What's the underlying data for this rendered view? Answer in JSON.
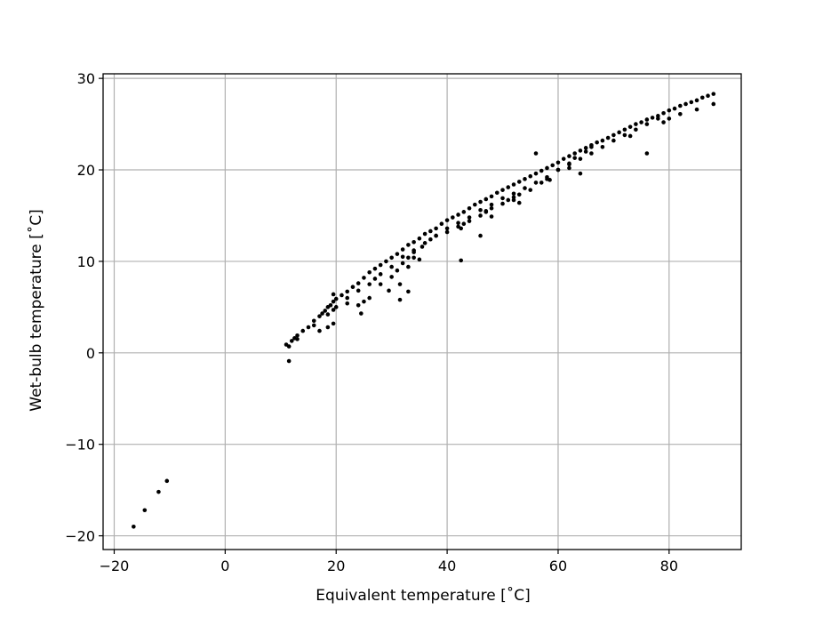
{
  "chart_data": {
    "type": "scatter",
    "title": "",
    "xlabel": "Equivalent temperature [˚C]",
    "ylabel": "Wet-bulb temperature [˚C]",
    "xlim": [
      -22,
      93
    ],
    "ylim": [
      -21.5,
      30.5
    ],
    "xticks": [
      -20,
      0,
      20,
      40,
      60,
      80
    ],
    "yticks": [
      -20,
      -10,
      0,
      10,
      20,
      30
    ],
    "xtick_labels": [
      "−20",
      "0",
      "20",
      "40",
      "60",
      "80"
    ],
    "ytick_labels": [
      "−20",
      "−10",
      "0",
      "10",
      "20",
      "30"
    ],
    "grid": true,
    "marker_color": "#000000",
    "series": [
      {
        "x": [
          -16.5,
          -14.5,
          -12,
          -10.5,
          11,
          11.5,
          12,
          12.5,
          13,
          14,
          15,
          16,
          17,
          17.5,
          18,
          18.5,
          19,
          19.5,
          20,
          21,
          22,
          23,
          24,
          25,
          26,
          27,
          28,
          29,
          30,
          31,
          32,
          33,
          34,
          35,
          36,
          37,
          38,
          39,
          40,
          41,
          42,
          43,
          44,
          45,
          46,
          47,
          48,
          49,
          50,
          51,
          52,
          53,
          54,
          55,
          56,
          57,
          58,
          59,
          60,
          61,
          62,
          63,
          64,
          65,
          66,
          67,
          68,
          69,
          70,
          71,
          72,
          73,
          74,
          75,
          76,
          77,
          78,
          79,
          80,
          81,
          82,
          83,
          84,
          85,
          86,
          87,
          88,
          20,
          22,
          24,
          26,
          28,
          30,
          32,
          34,
          36,
          38,
          40,
          42,
          44,
          46,
          48,
          50,
          52,
          54,
          56,
          58,
          60,
          62,
          64,
          66,
          68,
          70,
          72,
          74,
          76,
          78,
          11.5,
          17,
          18.5,
          19.5,
          24,
          25,
          26,
          28,
          30,
          31,
          32,
          33,
          34,
          35.5,
          37,
          38,
          40,
          42,
          43,
          44,
          46,
          47,
          48,
          50,
          51,
          52,
          53,
          55,
          57,
          58,
          60,
          62,
          63,
          65,
          66,
          73,
          79,
          80,
          82,
          85,
          88,
          13,
          16,
          18.5,
          19.5,
          22,
          27,
          31.5,
          33,
          35,
          42.5,
          47,
          52,
          58.5,
          62,
          64,
          76,
          19.5,
          24.5,
          29.5,
          31.5,
          33,
          34,
          42.5,
          46,
          48,
          53,
          56
        ],
        "y": [
          -19,
          -17.2,
          -15.2,
          -14,
          0.9,
          0.7,
          1.3,
          1.6,
          1.9,
          2.4,
          2.8,
          3.5,
          4,
          4.3,
          4.6,
          5,
          5.2,
          5.6,
          5.9,
          6.3,
          6.7,
          7.2,
          7.6,
          8.2,
          8.8,
          9.2,
          9.6,
          10,
          10.4,
          10.8,
          11.3,
          11.8,
          12.1,
          12.5,
          13,
          13.3,
          13.6,
          14.1,
          14.5,
          14.8,
          15.1,
          15.4,
          15.8,
          16.2,
          16.5,
          16.8,
          17.1,
          17.5,
          17.8,
          18.1,
          18.4,
          18.7,
          19,
          19.3,
          19.6,
          19.9,
          20.2,
          20.5,
          20.8,
          21.2,
          21.5,
          21.8,
          22.1,
          22.4,
          22.7,
          23,
          23.2,
          23.5,
          23.8,
          24.1,
          24.4,
          24.7,
          25,
          25.2,
          25.5,
          25.7,
          25.9,
          26.2,
          26.5,
          26.7,
          27,
          27.2,
          27.4,
          27.6,
          27.9,
          28.1,
          28.3,
          5,
          6,
          6.8,
          7.5,
          8.6,
          9.4,
          10.5,
          11.2,
          12,
          12.8,
          13.6,
          14.2,
          14.8,
          15.6,
          16.2,
          16.9,
          17.4,
          18,
          18.6,
          19.2,
          20,
          20.6,
          21.2,
          21.8,
          22.5,
          23.2,
          23.8,
          24.4,
          25,
          25.6,
          -0.9,
          2.4,
          2.8,
          3.2,
          5.2,
          5.6,
          6,
          7.5,
          8.3,
          9,
          9.8,
          10.4,
          11,
          11.6,
          12.4,
          12.8,
          13.2,
          13.8,
          14.1,
          14.4,
          15,
          15.4,
          15.8,
          16.3,
          16.7,
          17,
          17.3,
          17.8,
          18.6,
          19,
          20,
          20.7,
          21.3,
          22,
          22.5,
          23.7,
          25.2,
          25.6,
          26.1,
          26.6,
          27.2,
          1.5,
          3,
          4.2,
          4.7,
          5.4,
          8.1,
          7.5,
          9.4,
          10.2,
          13.6,
          15.5,
          16.7,
          18.9,
          20.2,
          19.6,
          21.8,
          6.4,
          4.3,
          6.8,
          5.8,
          6.7,
          10.4,
          10.1,
          12.8,
          14.9,
          16.4,
          21.8
        ]
      }
    ]
  }
}
